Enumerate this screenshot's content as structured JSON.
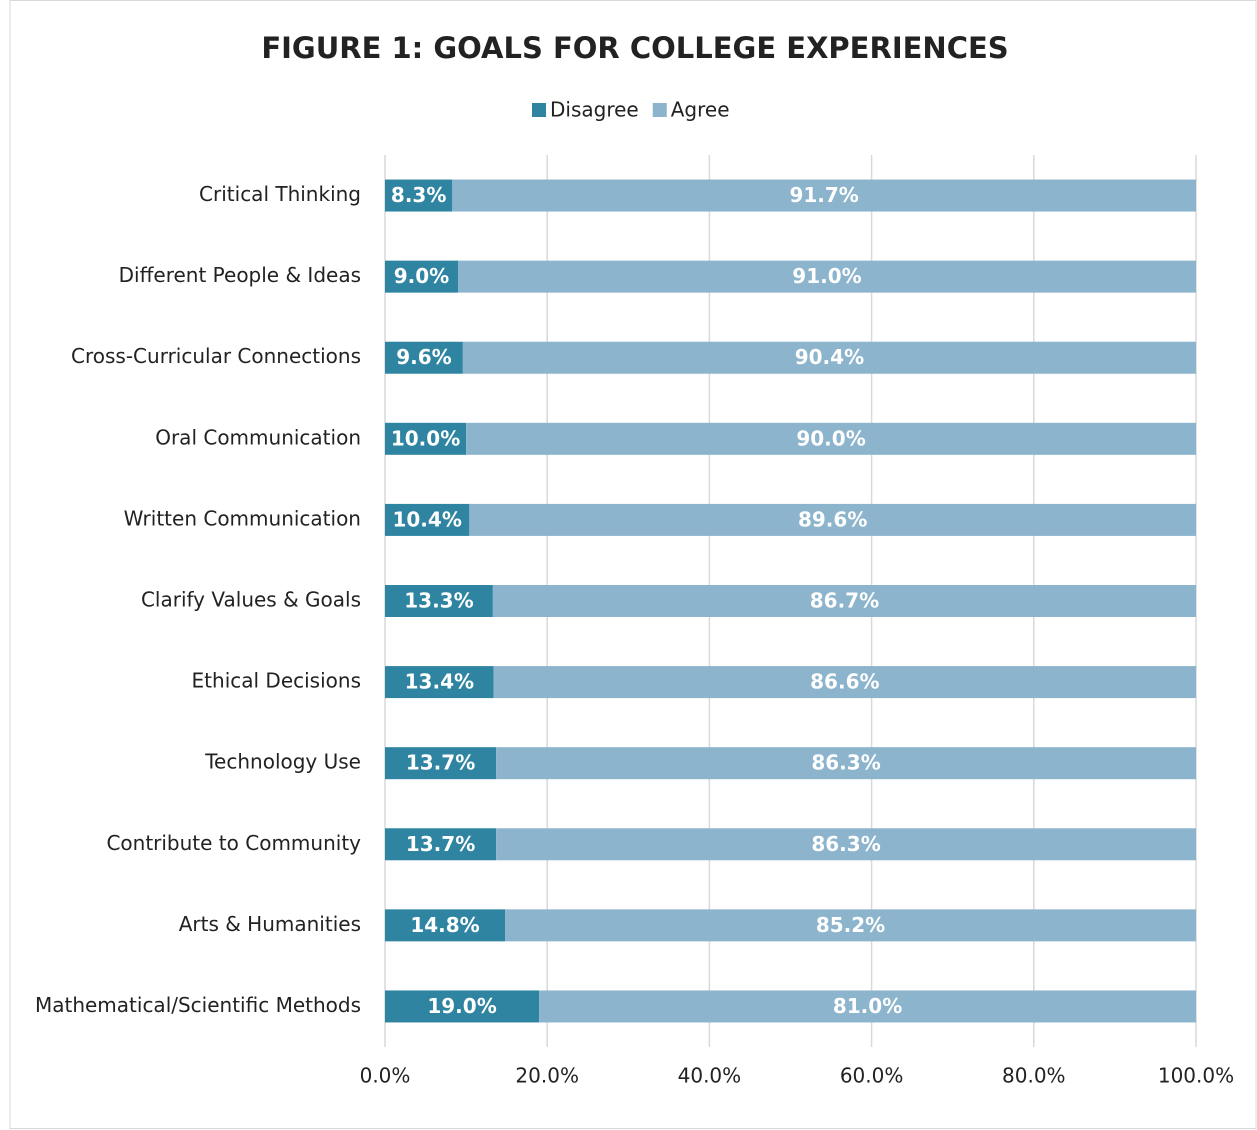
{
  "chart_data": {
    "type": "bar",
    "orientation": "horizontal",
    "stacked": true,
    "title": "FIGURE 1: GOALS FOR COLLEGE EXPERIENCES",
    "categories": [
      "Critical Thinking",
      "Different People & Ideas",
      "Cross-Curricular Connections",
      "Oral Communication",
      "Written Communication",
      "Clarify Values & Goals",
      "Ethical Decisions",
      "Technology Use",
      "Contribute to Community",
      "Arts & Humanities",
      "Mathematical/Scientific Methods"
    ],
    "series": [
      {
        "name": "Disagree",
        "color": "#2e84a1",
        "values": [
          8.3,
          9.0,
          9.6,
          10.0,
          10.4,
          13.3,
          13.4,
          13.7,
          13.7,
          14.8,
          19.0
        ],
        "value_labels": [
          "8.3%",
          "9.0%",
          "9.6%",
          "10.0%",
          "10.4%",
          "13.3%",
          "13.4%",
          "13.7%",
          "13.7%",
          "14.8%",
          "19.0%"
        ]
      },
      {
        "name": "Agree",
        "color": "#8cb4cc",
        "values": [
          91.7,
          91.0,
          90.4,
          90.0,
          89.6,
          86.7,
          86.6,
          86.3,
          86.3,
          85.2,
          81.0
        ],
        "value_labels": [
          "91.7%",
          "91.0%",
          "90.4%",
          "90.0%",
          "89.6%",
          "86.7%",
          "86.6%",
          "86.3%",
          "86.3%",
          "85.2%",
          "81.0%"
        ]
      }
    ],
    "xlim": [
      0,
      100
    ],
    "xticks": [
      {
        "value": 0,
        "label": "0.0%"
      },
      {
        "value": 20,
        "label": "20.0%"
      },
      {
        "value": 40,
        "label": "40.0%"
      },
      {
        "value": 60,
        "label": "60.0%"
      },
      {
        "value": 80,
        "label": "80.0%"
      },
      {
        "value": 100,
        "label": "100.0%"
      }
    ],
    "grid": true,
    "legend": "top"
  }
}
